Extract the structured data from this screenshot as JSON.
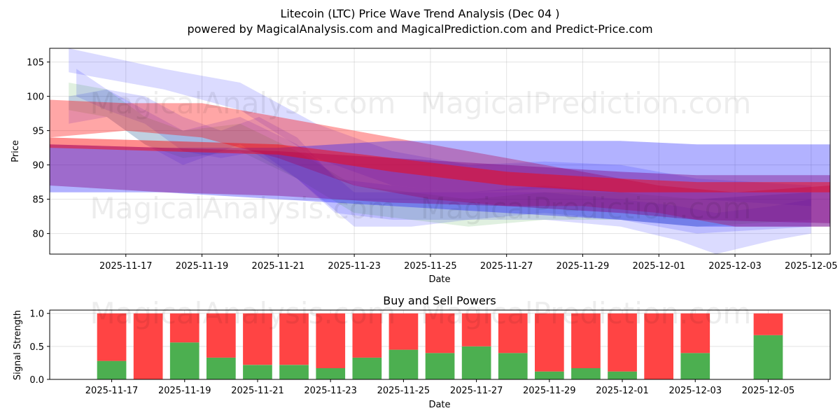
{
  "header": {
    "title": "Litecoin (LTC) Price Wave Trend Analysis (Dec 04 )",
    "subtitle": "powered by MagicalAnalysis.com and MagicalPrediction.com and Predict-Price.com"
  },
  "watermarks": [
    "MagicalAnalysis.com",
    "MagicalPrediction.com"
  ],
  "colors": {
    "red": "#ff0000",
    "blue": "#0000ff",
    "green": "#008000",
    "purple": "#800080",
    "buy": "#4caf50",
    "sell": "#ff4444"
  },
  "chart_data": [
    {
      "type": "area",
      "title": "",
      "xlabel": "Date",
      "ylabel": "Price",
      "x_range": [
        "2025-11-15",
        "2025-12-05.5"
      ],
      "ylim": [
        77,
        107
      ],
      "yticks": [
        80,
        85,
        90,
        95,
        100,
        105
      ],
      "xticks": [
        "2025-11-17",
        "2025-11-19",
        "2025-11-21",
        "2025-11-23",
        "2025-11-25",
        "2025-11-27",
        "2025-11-29",
        "2025-12-01",
        "2025-12-03",
        "2025-12-05"
      ],
      "grid": true,
      "bands": [
        {
          "name": "blue-wave-high",
          "color": "blue",
          "opacity": 0.14,
          "x": [
            "2025-11-15.5",
            "2025-11-18",
            "2025-11-20",
            "2025-11-22",
            "2025-11-24",
            "2025-11-26",
            "2025-11-28",
            "2025-11-30",
            "2025-12-02",
            "2025-12-05"
          ],
          "lower": [
            103.5,
            101,
            98,
            91,
            87,
            86,
            86.5,
            86,
            85,
            84
          ],
          "upper": [
            107,
            104,
            102,
            96,
            92,
            90,
            90.5,
            90,
            88,
            87
          ]
        },
        {
          "name": "blue-wave-1",
          "color": "blue",
          "opacity": 0.14,
          "x": [
            "2025-11-15.7",
            "2025-11-16.5",
            "2025-11-17.5",
            "2025-11-18.5",
            "2025-11-19.5",
            "2025-11-20.5",
            "2025-11-21.5",
            "2025-11-22.5",
            "2025-11-24",
            "2025-11-26",
            "2025-11-28",
            "2025-11-30",
            "2025-12-01.5",
            "2025-12-02.5",
            "2025-12-04",
            "2025-12-05"
          ],
          "lower": [
            100,
            98,
            96,
            92,
            91,
            92,
            88,
            83,
            82,
            82,
            82,
            81,
            79,
            77,
            79,
            80
          ],
          "upper": [
            104,
            101,
            100,
            97,
            95,
            97,
            94,
            88,
            87,
            86,
            86,
            85,
            84,
            83,
            84,
            85
          ]
        },
        {
          "name": "blue-wave-2",
          "color": "blue",
          "opacity": 0.14,
          "x": [
            "2025-11-15.5",
            "2025-11-16.5",
            "2025-11-17.5",
            "2025-11-18.5",
            "2025-11-20",
            "2025-11-21.5",
            "2025-11-23",
            "2025-11-24.5",
            "2025-11-26",
            "2025-11-28",
            "2025-11-30",
            "2025-12-02",
            "2025-12-05"
          ],
          "lower": [
            96,
            97,
            93,
            90,
            93,
            88,
            81,
            81,
            82,
            83,
            82,
            80,
            81
          ],
          "upper": [
            100,
            101,
            98,
            95,
            97,
            93,
            86,
            86,
            86,
            87,
            86,
            85,
            86
          ]
        },
        {
          "name": "green-wave",
          "color": "green",
          "opacity": 0.12,
          "x": [
            "2025-11-15.5",
            "2025-11-16.5",
            "2025-11-17.5",
            "2025-11-18.5",
            "2025-11-20",
            "2025-11-21.5",
            "2025-11-23",
            "2025-11-24.5",
            "2025-11-26",
            "2025-11-28",
            "2025-11-30",
            "2025-12-02",
            "2025-12-05"
          ],
          "lower": [
            98,
            97,
            93,
            91,
            92,
            88,
            83,
            82,
            81,
            82,
            82,
            81,
            82
          ],
          "upper": [
            102,
            101,
            97,
            95,
            96,
            92,
            87,
            86,
            85,
            86,
            86,
            85,
            86
          ]
        },
        {
          "name": "red-wave",
          "color": "red",
          "opacity": 0.35,
          "x": [
            "2025-11-15",
            "2025-11-17",
            "2025-11-19",
            "2025-11-21",
            "2025-11-23",
            "2025-11-25",
            "2025-11-27",
            "2025-11-29",
            "2025-12-01",
            "2025-12-03",
            "2025-12-05.5"
          ],
          "lower": [
            94,
            95,
            94,
            91,
            87,
            85,
            84,
            84,
            83,
            81,
            81
          ],
          "upper": [
            99.5,
            99,
            99,
            97,
            95,
            93,
            91,
            89,
            87,
            86,
            87
          ]
        },
        {
          "name": "blue-envelope",
          "color": "blue",
          "opacity": 0.3,
          "x": [
            "2025-11-15",
            "2025-11-18",
            "2025-11-21",
            "2025-11-24",
            "2025-11-27",
            "2025-11-30",
            "2025-12-02",
            "2025-12-05.5"
          ],
          "lower": [
            86,
            86,
            85,
            84,
            83,
            82,
            81,
            81
          ],
          "upper": [
            93,
            92.5,
            92.5,
            93.5,
            93.5,
            93.5,
            93,
            93
          ]
        },
        {
          "name": "purple-band",
          "color": "purple",
          "opacity": 0.4,
          "x": [
            "2025-11-15",
            "2025-11-18",
            "2025-11-21",
            "2025-11-24",
            "2025-11-27",
            "2025-11-30",
            "2025-12-02",
            "2025-12-05.5"
          ],
          "lower": [
            87,
            86,
            85.5,
            84.5,
            84,
            83,
            82,
            81.5
          ],
          "upper": [
            93,
            92.5,
            92,
            91,
            90,
            89,
            88.5,
            88.5
          ]
        },
        {
          "name": "red-trend",
          "color": "red",
          "opacity": 0.45,
          "x": [
            "2025-11-15",
            "2025-11-18",
            "2025-11-21",
            "2025-11-24",
            "2025-11-27",
            "2025-11-30",
            "2025-12-02",
            "2025-12-05.5"
          ],
          "lower": [
            92.5,
            92,
            91.5,
            89,
            87,
            86,
            86,
            86
          ],
          "upper": [
            94,
            93.5,
            93,
            91,
            89,
            88,
            87.5,
            87.5
          ]
        }
      ]
    },
    {
      "type": "bar",
      "title": "Buy and Sell Powers",
      "xlabel": "Date",
      "ylabel": "Signal Strength",
      "ylim": [
        0,
        1.05
      ],
      "yticks": [
        "0.0",
        "0.5",
        "1.0"
      ],
      "xticks": [
        "2025-11-17",
        "2025-11-19",
        "2025-11-21",
        "2025-11-23",
        "2025-11-25",
        "2025-11-27",
        "2025-11-29",
        "2025-12-01",
        "2025-12-03",
        "2025-12-05"
      ],
      "grid": true,
      "x_range": [
        "2025-11-15.3",
        "2025-12-06.7"
      ],
      "categories": [
        "2025-11-17",
        "2025-11-18",
        "2025-11-19",
        "2025-11-20",
        "2025-11-21",
        "2025-11-22",
        "2025-11-23",
        "2025-11-24",
        "2025-11-25",
        "2025-11-26",
        "2025-11-27",
        "2025-11-28",
        "2025-11-29",
        "2025-11-30",
        "2025-12-01",
        "2025-12-02",
        "2025-12-03",
        "2025-12-05"
      ],
      "series": [
        {
          "name": "Buy",
          "color": "buy",
          "values": [
            0.28,
            0.0,
            0.56,
            0.33,
            0.22,
            0.22,
            0.17,
            0.33,
            0.45,
            0.4,
            0.5,
            0.4,
            0.12,
            0.17,
            0.12,
            0.0,
            0.4,
            0.67
          ]
        },
        {
          "name": "Sell",
          "color": "sell",
          "values": [
            0.72,
            1.0,
            0.44,
            0.67,
            0.78,
            0.78,
            0.83,
            0.67,
            0.55,
            0.6,
            0.5,
            0.6,
            0.88,
            0.83,
            0.88,
            1.0,
            0.6,
            0.33
          ]
        }
      ]
    }
  ]
}
